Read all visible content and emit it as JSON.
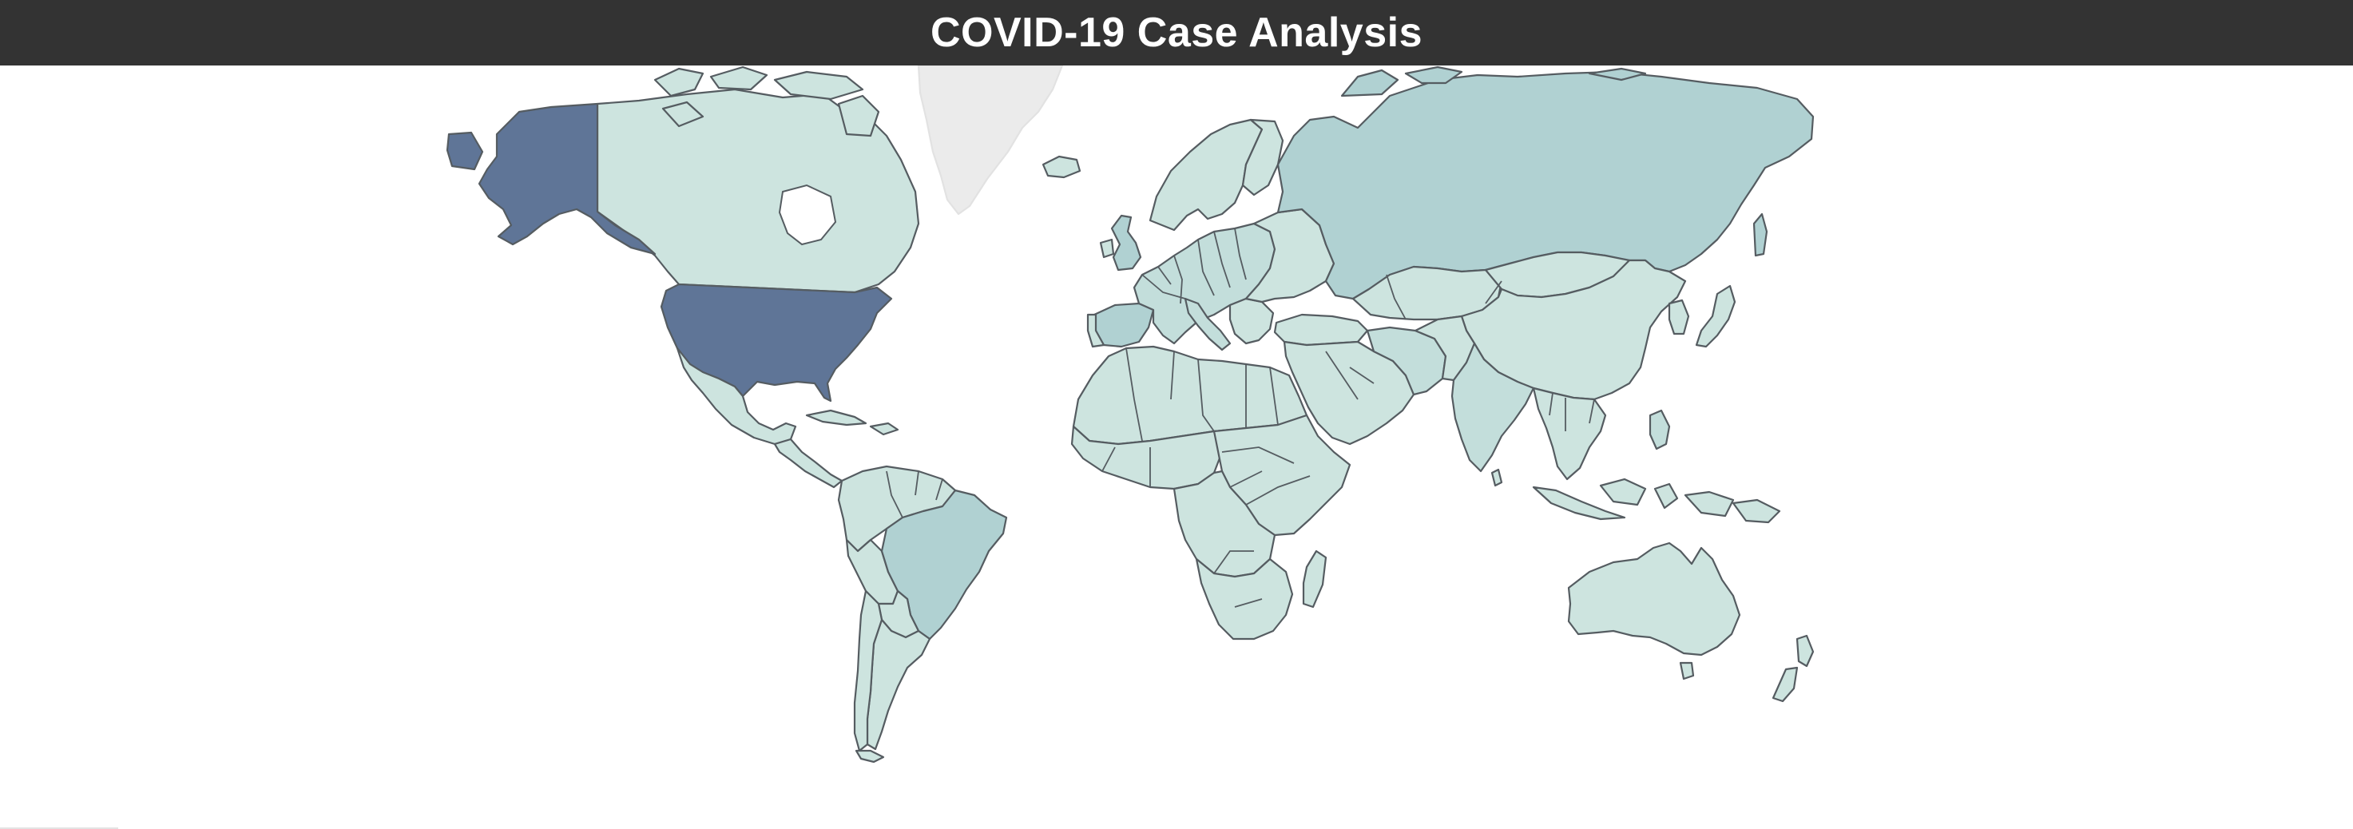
{
  "header": {
    "title": "COVID-19 Case Analysis"
  },
  "map": {
    "projection": "mercator",
    "fill_scale": {
      "lowest": "#cde4df",
      "low": "#c3dedb",
      "medium": "#b0d1d2",
      "highest": "#5f7597",
      "no_data": "#ebebeb"
    },
    "regions": [
      {
        "name": "United States",
        "level": "highest"
      },
      {
        "name": "Alaska",
        "level": "highest"
      },
      {
        "name": "Brazil",
        "level": "medium"
      },
      {
        "name": "Russia",
        "level": "medium"
      },
      {
        "name": "Spain",
        "level": "medium"
      },
      {
        "name": "United Kingdom",
        "level": "medium"
      },
      {
        "name": "Greenland",
        "level": "no_data"
      }
    ]
  }
}
